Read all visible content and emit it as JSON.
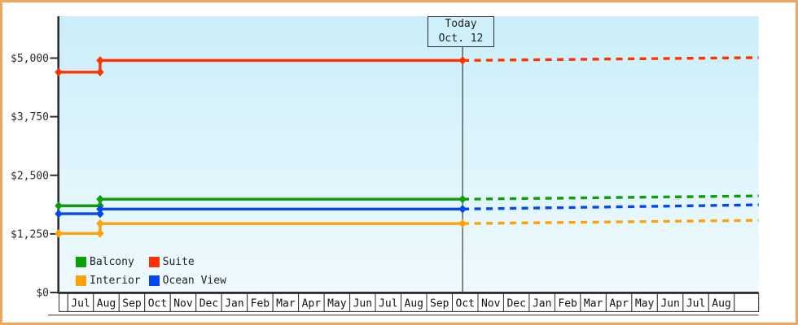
{
  "frame": {
    "border_color": "#eca85c",
    "background": "#ffffff"
  },
  "chart_data": {
    "type": "line",
    "title": "",
    "description": "Cabin price history by category; solid lines are past prices, dashed lines are projections after today",
    "y_axis": {
      "max": 5000,
      "ticks": [
        {
          "label": "$0",
          "value": 0
        },
        {
          "label": "$1,250",
          "value": 1250
        },
        {
          "label": "$2,500",
          "value": 2500
        },
        {
          "label": "$3,750",
          "value": 3750
        },
        {
          "label": "$5,000",
          "value": 5000
        }
      ]
    },
    "x_axis": {
      "months": [
        "Jul",
        "Aug",
        "Sep",
        "Oct",
        "Nov",
        "Dec",
        "Jan",
        "Feb",
        "Mar",
        "Apr",
        "May",
        "Jun",
        "Jul",
        "Aug",
        "Sep",
        "Oct",
        "Nov",
        "Dec",
        "Jan",
        "Feb",
        "Mar",
        "Apr",
        "May",
        "Jun",
        "Jul",
        "Aug"
      ]
    },
    "today": {
      "title": "Today",
      "date": "Oct. 12",
      "month_position": 15.4
    },
    "series": [
      {
        "name": "Balcony",
        "color": "#0aa00a",
        "history": [
          [
            -0.36,
            1850
          ],
          [
            1.26,
            1850
          ],
          [
            1.26,
            1990
          ],
          [
            15.4,
            1990
          ]
        ],
        "projection": [
          [
            15.4,
            1990
          ],
          [
            26.95,
            2060
          ]
        ]
      },
      {
        "name": "Suite",
        "color": "#ff3300",
        "history": [
          [
            -0.36,
            4700
          ],
          [
            1.26,
            4700
          ],
          [
            1.26,
            4950
          ],
          [
            15.4,
            4950
          ]
        ],
        "projection": [
          [
            15.4,
            4950
          ],
          [
            26.95,
            5010
          ]
        ]
      },
      {
        "name": "Interior",
        "color": "#ffa303",
        "history": [
          [
            -0.36,
            1260
          ],
          [
            1.26,
            1260
          ],
          [
            1.26,
            1470
          ],
          [
            15.4,
            1470
          ]
        ],
        "projection": [
          [
            15.4,
            1470
          ],
          [
            26.95,
            1540
          ]
        ]
      },
      {
        "name": "Ocean View",
        "color": "#0546f0",
        "history": [
          [
            -0.36,
            1680
          ],
          [
            1.26,
            1680
          ],
          [
            1.26,
            1780
          ],
          [
            15.4,
            1780
          ]
        ],
        "projection": [
          [
            15.4,
            1780
          ],
          [
            26.95,
            1870
          ]
        ]
      }
    ],
    "plot": {
      "background_gradient_top": "#cbeefa",
      "background_gradient_bottom": "#effafe",
      "axis_color": "#2d2d2d"
    }
  }
}
